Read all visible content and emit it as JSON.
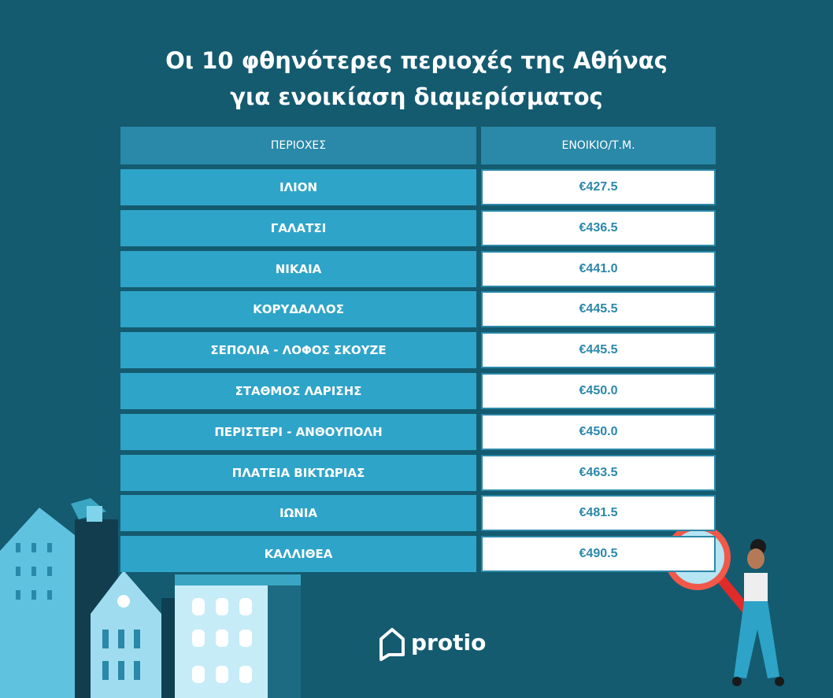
{
  "title": [
    "Οι 10 φθηνότερες περιοχές της Αθήνας",
    "για ενοικίαση διαμερίσματος"
  ],
  "table": {
    "header": [
      "ΠΕΡΙΟΧΕΣ",
      "ΕΝΟΙΚΙΟ/Τ.Μ."
    ],
    "rows": [
      [
        "ΙΛΙΟΝ",
        "€427.5"
      ],
      [
        "ΓΑΛΑΤΣΙ",
        "€436.5"
      ],
      [
        "ΝΙΚΑΙΑ",
        "€441.0"
      ],
      [
        "ΚΟΡΥΔΑΛΛΟΣ",
        "€445.5"
      ],
      [
        "ΣΕΠΟΛΙΑ - ΛΟΦΟΣ ΣΚΟΥΖΕ",
        "€445.5"
      ],
      [
        "ΣΤΑΘΜΟΣ ΛΑΡΙΣΗΣ",
        "€450.0"
      ],
      [
        "ΠΕΡΙΣΤΕΡΙ - ΑΝΘΟΥΠΟΛΗ",
        "€450.0"
      ],
      [
        "ΠΛΑΤΕΙΑ ΒΙΚΤΩΡΙΑΣ",
        "€463.5"
      ],
      [
        "ΙΩΝΙΑ",
        "€481.5"
      ],
      [
        "ΚΑΛΛΙΘΕΑ",
        "€490.5"
      ]
    ]
  },
  "logo": "protio"
}
